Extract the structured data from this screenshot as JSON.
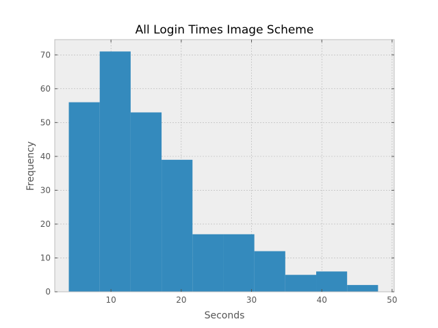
{
  "chart_data": {
    "type": "histogram",
    "title": "All Login Times Image Scheme",
    "xlabel": "Seconds",
    "ylabel": "Frequency",
    "xlim": [
      2,
      50.3
    ],
    "ylim": [
      0,
      74.5
    ],
    "xticks": [
      10,
      20,
      30,
      40,
      50
    ],
    "yticks": [
      0,
      10,
      20,
      30,
      40,
      50,
      60,
      70
    ],
    "bin_edges": [
      4.0,
      8.4,
      12.8,
      17.2,
      21.6,
      26.0,
      30.4,
      34.8,
      39.2,
      43.6,
      48.0
    ],
    "values": [
      56,
      71,
      53,
      39,
      17,
      17,
      12,
      5,
      6,
      2
    ],
    "grid": true,
    "bar_color": "#348abd"
  },
  "colors": {
    "background": "#eeeeee",
    "grid": "#b2b2b2",
    "spine": "#bcbcbc",
    "tick": "#555555",
    "title": "#000000"
  }
}
